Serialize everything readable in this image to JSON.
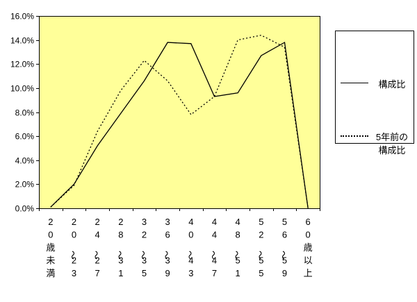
{
  "chart_data": {
    "type": "line",
    "title": "",
    "categories": [
      "20歳未満",
      "20〜23",
      "24〜27",
      "28〜31",
      "32〜35",
      "36〜39",
      "40〜43",
      "44〜47",
      "48〜51",
      "52〜55",
      "56〜59",
      "60歳以上"
    ],
    "series": [
      {
        "name": "構成比",
        "style": "solid",
        "values": [
          0.1,
          2.0,
          5.2,
          7.9,
          10.6,
          13.8,
          13.7,
          9.3,
          9.6,
          12.7,
          13.8,
          0.0
        ]
      },
      {
        "name": "5年前の構成比",
        "style": "dotted",
        "values": [
          0.1,
          1.9,
          6.4,
          9.8,
          12.3,
          10.6,
          7.8,
          9.3,
          14.0,
          14.4,
          13.4,
          0.0
        ]
      }
    ],
    "ylim": [
      0,
      16
    ],
    "ytick_step": 2,
    "ytick_labels": [
      "0.0%",
      "2.0%",
      "4.0%",
      "6.0%",
      "8.0%",
      "10.0%",
      "12.0%",
      "14.0%",
      "16.0%"
    ],
    "grid": false,
    "legend_position": "right",
    "plot_bg_color": "#FFFF99",
    "line_color": "#000000",
    "text_color": "#000000"
  },
  "legend": {
    "items": [
      {
        "label": "構成比",
        "line_style": "solid"
      },
      {
        "label": "5年前の構成比",
        "line_style": "dotted"
      }
    ]
  }
}
